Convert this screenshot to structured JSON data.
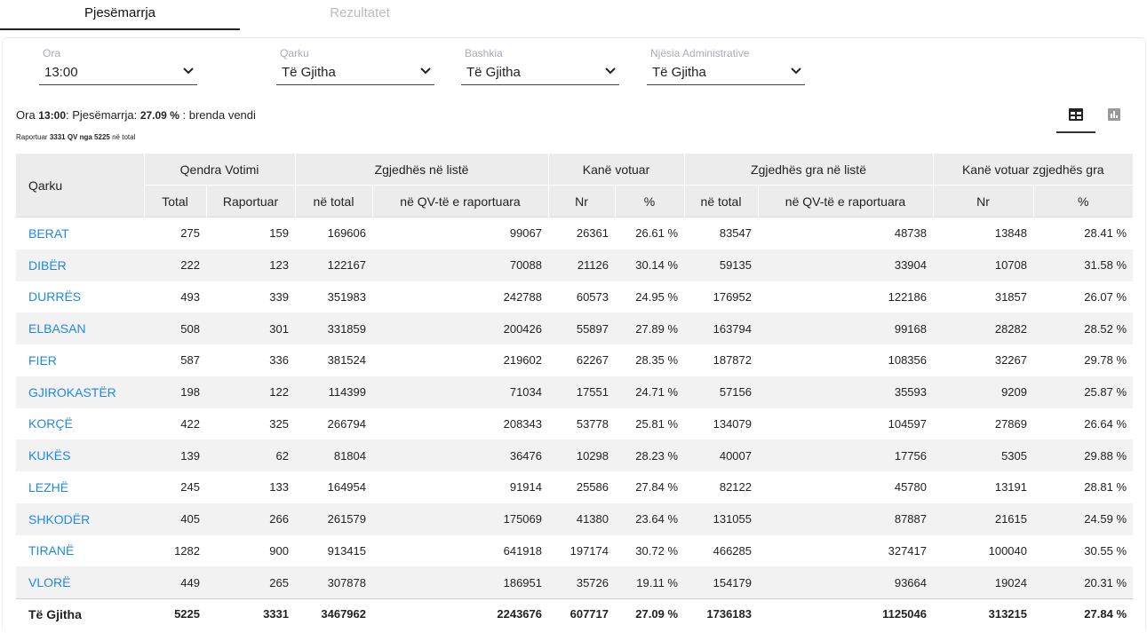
{
  "tabs": [
    "Pjesëmarrja",
    "Rezultatet"
  ],
  "filters": [
    {
      "label": "Ora",
      "value": "13:00"
    },
    {
      "label": "Qarku",
      "value": "Të Gjitha"
    },
    {
      "label": "Bashkia",
      "value": "Të Gjitha"
    },
    {
      "label": "Njësia Administrative",
      "value": "Të Gjitha"
    }
  ],
  "summary": {
    "parts": [
      "Ora",
      "13:00",
      ": Pjesëmarrja:",
      "27.09 %",
      ": brenda vendi"
    ],
    "reported": [
      "Raportuar",
      "3331 QV nga 5225",
      "në total"
    ]
  },
  "table": {
    "group_headers": [
      "Qarku",
      "Qendra Votimi",
      "Zgjedhës në listë",
      "Kanë votuar",
      "Zgjedhës gra në listë",
      "Kanë votuar zgjedhës gra"
    ],
    "sub_headers": [
      "Total",
      "Raportuar",
      "në total",
      "në QV-të e raportuara",
      "Nr",
      "%",
      "në total",
      "në QV-të e raportuara",
      "Nr",
      "%"
    ],
    "rows": [
      [
        "BERAT",
        275,
        159,
        169606,
        99067,
        26361,
        "26.61 %",
        83547,
        48738,
        13848,
        "28.41 %"
      ],
      [
        "DIBËR",
        222,
        123,
        122167,
        70088,
        21126,
        "30.14 %",
        59135,
        33904,
        10708,
        "31.58 %"
      ],
      [
        "DURRËS",
        493,
        339,
        351983,
        242788,
        60573,
        "24.95 %",
        176952,
        122186,
        31857,
        "26.07 %"
      ],
      [
        "ELBASAN",
        508,
        301,
        331859,
        200426,
        55897,
        "27.89 %",
        163794,
        99168,
        28282,
        "28.52 %"
      ],
      [
        "FIER",
        587,
        336,
        381524,
        219602,
        62267,
        "28.35 %",
        187872,
        108356,
        32267,
        "29.78 %"
      ],
      [
        "GJIROKASTËR",
        198,
        122,
        114399,
        71034,
        17551,
        "24.71 %",
        57156,
        35593,
        9209,
        "25.87 %"
      ],
      [
        "KORÇË",
        422,
        325,
        266794,
        208343,
        53778,
        "25.81 %",
        134079,
        104597,
        27869,
        "26.64 %"
      ],
      [
        "KUKËS",
        139,
        62,
        81804,
        36476,
        10298,
        "28.23 %",
        40007,
        17756,
        5305,
        "29.88 %"
      ],
      [
        "LEZHË",
        245,
        133,
        164954,
        91914,
        25586,
        "27.84 %",
        82122,
        45780,
        13191,
        "28.81 %"
      ],
      [
        "SHKODËR",
        405,
        266,
        261579,
        175069,
        41380,
        "23.64 %",
        131055,
        87887,
        21615,
        "24.59 %"
      ],
      [
        "TIRANË",
        1282,
        900,
        913415,
        641918,
        197174,
        "30.72 %",
        466285,
        327417,
        100040,
        "30.55 %"
      ],
      [
        "VLORË",
        449,
        265,
        307878,
        186951,
        35726,
        "19.11 %",
        154179,
        93664,
        19024,
        "20.31 %"
      ]
    ],
    "total": [
      "Të Gjitha",
      5225,
      3331,
      3467962,
      2243676,
      607717,
      "27.09 %",
      1736183,
      1125046,
      313215,
      "27.84 %"
    ]
  }
}
